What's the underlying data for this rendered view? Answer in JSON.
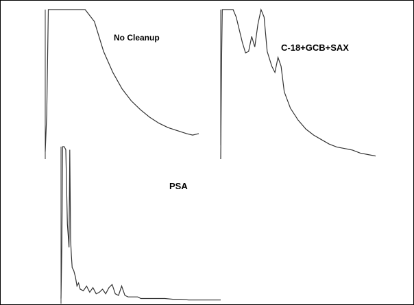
{
  "colors": {
    "trace": "#333333",
    "border": "#000000",
    "background": "#ffffff"
  },
  "chart_data": [
    {
      "type": "line",
      "title": "No Cleanup",
      "xlabel": "",
      "ylabel": "",
      "grid": false,
      "series": [
        {
          "x": [
            0,
            1,
            2,
            4,
            6,
            10,
            14,
            20,
            26,
            32,
            38,
            44,
            50,
            56,
            62,
            68,
            74,
            80,
            86,
            92,
            96,
            100
          ],
          "values": [
            0.05,
            0.3,
            1.0,
            1.0,
            1.0,
            1.0,
            1.0,
            1.0,
            1.0,
            0.92,
            0.72,
            0.58,
            0.47,
            0.39,
            0.33,
            0.28,
            0.24,
            0.21,
            0.19,
            0.17,
            0.16,
            0.17
          ]
        }
      ]
    },
    {
      "type": "line",
      "title": "C-18+GCB+SAX",
      "xlabel": "",
      "ylabel": "",
      "grid": false,
      "series": [
        {
          "x": [
            0,
            0.5,
            1,
            2,
            8,
            10,
            14,
            16,
            18,
            20,
            22,
            24,
            26,
            28,
            30,
            33,
            35,
            37,
            39,
            41,
            45,
            50,
            55,
            60,
            65,
            70,
            75,
            80,
            85,
            90,
            95,
            100
          ],
          "values": [
            0.0,
            0.6,
            1.0,
            1.0,
            1.0,
            0.95,
            0.78,
            0.71,
            0.72,
            0.82,
            0.75,
            0.9,
            1.0,
            0.95,
            0.72,
            0.62,
            0.58,
            0.68,
            0.62,
            0.45,
            0.34,
            0.26,
            0.2,
            0.16,
            0.13,
            0.1,
            0.08,
            0.07,
            0.06,
            0.04,
            0.03,
            0.02
          ]
        }
      ]
    },
    {
      "type": "line",
      "title": "PSA",
      "xlabel": "",
      "ylabel": "",
      "grid": false,
      "series": [
        {
          "x": [
            0,
            0.5,
            1,
            2,
            3,
            4,
            5,
            5.5,
            6,
            6.5,
            7,
            8,
            9,
            10,
            11,
            12,
            14,
            16,
            18,
            20,
            22,
            24,
            26,
            28,
            30,
            32,
            34,
            36,
            38,
            40,
            42,
            44,
            46,
            48,
            50,
            55,
            60,
            65,
            70,
            75,
            80,
            85,
            90,
            95,
            100
          ],
          "values": [
            0.02,
            0.35,
            1.0,
            1.0,
            0.98,
            0.5,
            0.35,
            0.98,
            0.4,
            0.3,
            0.22,
            0.2,
            0.16,
            0.1,
            0.12,
            0.08,
            0.07,
            0.1,
            0.06,
            0.09,
            0.05,
            0.06,
            0.08,
            0.05,
            0.09,
            0.11,
            0.05,
            0.04,
            0.1,
            0.04,
            0.03,
            0.03,
            0.03,
            0.03,
            0.02,
            0.02,
            0.02,
            0.02,
            0.015,
            0.015,
            0.01,
            0.01,
            0.01,
            0.01,
            0.01
          ]
        }
      ]
    }
  ]
}
